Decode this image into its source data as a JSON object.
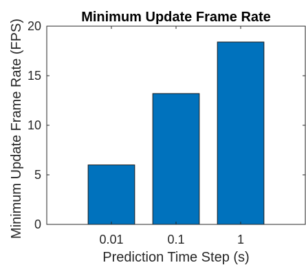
{
  "chart_data": {
    "type": "bar",
    "title": "Minimum Update Frame Rate",
    "xlabel": "Prediction Time Step (s)",
    "ylabel": "Minimum Update Frame Rate (FPS)",
    "categories": [
      "0.01",
      "0.1",
      "1"
    ],
    "values": [
      6.0,
      13.2,
      18.4
    ],
    "ylim": [
      0,
      20
    ],
    "yticks": [
      0,
      5,
      10,
      15,
      20
    ],
    "grid": false,
    "legend": "none",
    "colors": {
      "bar": "#0072BD",
      "bar_edge": "#1a1a1a",
      "axis": "#262626"
    }
  }
}
